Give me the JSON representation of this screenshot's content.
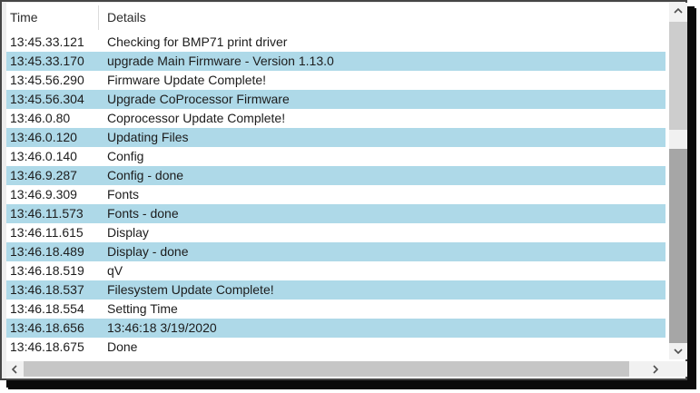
{
  "colors": {
    "row_highlight": "#aed9e8",
    "scrollbar_track": "#f1f1f1",
    "scrollbar_thumb": "#a6a6a6",
    "scrollbar_thumb_light": "#cdcdcd",
    "frame_border": "#454545",
    "shadow": "#0b0b0b",
    "text": "#1c1c1c"
  },
  "icons": {
    "up": "chevron-up-icon",
    "down": "chevron-down-icon",
    "left": "chevron-left-icon",
    "right": "chevron-right-icon"
  },
  "table": {
    "columns": [
      {
        "label": "Time"
      },
      {
        "label": "Details"
      }
    ],
    "rows": [
      {
        "time": "13:45.33.121",
        "details": "Checking for BMP71 print driver",
        "highlight": false
      },
      {
        "time": "13:45.33.170",
        "details": "upgrade Main Firmware - Version 1.13.0",
        "highlight": true
      },
      {
        "time": "13:45.56.290",
        "details": "Firmware Update Complete!",
        "highlight": false
      },
      {
        "time": "13:45.56.304",
        "details": "Upgrade CoProcessor Firmware",
        "highlight": true
      },
      {
        "time": "13:46.0.80",
        "details": "Coprocessor Update Complete!",
        "highlight": false
      },
      {
        "time": "13:46.0.120",
        "details": "Updating Files",
        "highlight": true
      },
      {
        "time": "13:46.0.140",
        "details": "Config",
        "highlight": false
      },
      {
        "time": "13:46.9.287",
        "details": "Config - done",
        "highlight": true
      },
      {
        "time": "13:46.9.309",
        "details": "Fonts",
        "highlight": false
      },
      {
        "time": "13:46.11.573",
        "details": "Fonts - done",
        "highlight": true
      },
      {
        "time": "13:46.11.615",
        "details": "Display",
        "highlight": false
      },
      {
        "time": "13:46.18.489",
        "details": "Display - done",
        "highlight": true
      },
      {
        "time": "13:46.18.519",
        "details": "qV",
        "highlight": false
      },
      {
        "time": "13:46.18.537",
        "details": "Filesystem Update Complete!",
        "highlight": true
      },
      {
        "time": "13:46.18.554",
        "details": "Setting Time",
        "highlight": false
      },
      {
        "time": "13:46.18.656",
        "details": "13:46:18 3/19/2020",
        "highlight": true
      },
      {
        "time": "13:46.18.675",
        "details": "Done",
        "highlight": false
      }
    ]
  }
}
